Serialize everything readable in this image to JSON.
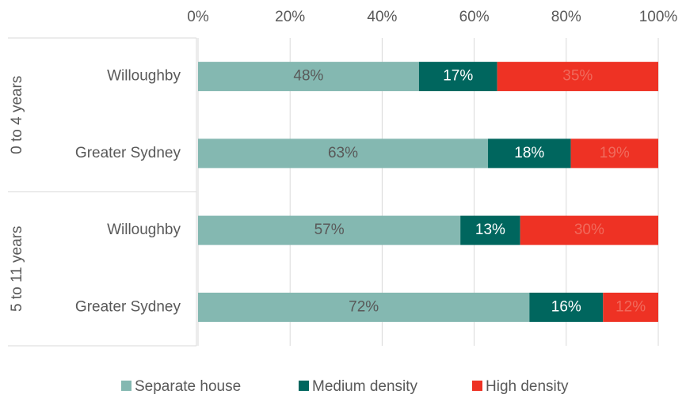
{
  "chart_data": {
    "type": "stacked-bar-horizontal",
    "categories": [
      "Willoughby",
      "Greater Sydney",
      "Willoughby",
      "Greater Sydney"
    ],
    "groups": [
      "0 to 4 years",
      "5 to 11 years"
    ],
    "series": [
      {
        "name": "Separate house",
        "color": "#84b8b1",
        "label_color": "#595959",
        "values": [
          48,
          63,
          57,
          72
        ],
        "value_labels": [
          "48%",
          "63%",
          "57%",
          "72%"
        ]
      },
      {
        "name": "Medium density",
        "color": "#00665e",
        "label_color": "#ffffff",
        "values": [
          17,
          18,
          13,
          16
        ],
        "value_labels": [
          "17%",
          "18%",
          "13%",
          "16%"
        ]
      },
      {
        "name": "High density",
        "color": "#ee3224",
        "label_color": "#f06a5c",
        "values": [
          35,
          19,
          30,
          12
        ],
        "value_labels": [
          "35%",
          "19%",
          "30%",
          "12%"
        ]
      }
    ],
    "xlim": [
      0,
      100
    ],
    "xticks": [
      {
        "value": 0,
        "label": "0%"
      },
      {
        "value": 20,
        "label": "20%"
      },
      {
        "value": 40,
        "label": "40%"
      },
      {
        "value": 60,
        "label": "60%"
      },
      {
        "value": 80,
        "label": "80%"
      },
      {
        "value": 100,
        "label": "100%"
      }
    ],
    "grid": true,
    "legend": "bottom"
  }
}
